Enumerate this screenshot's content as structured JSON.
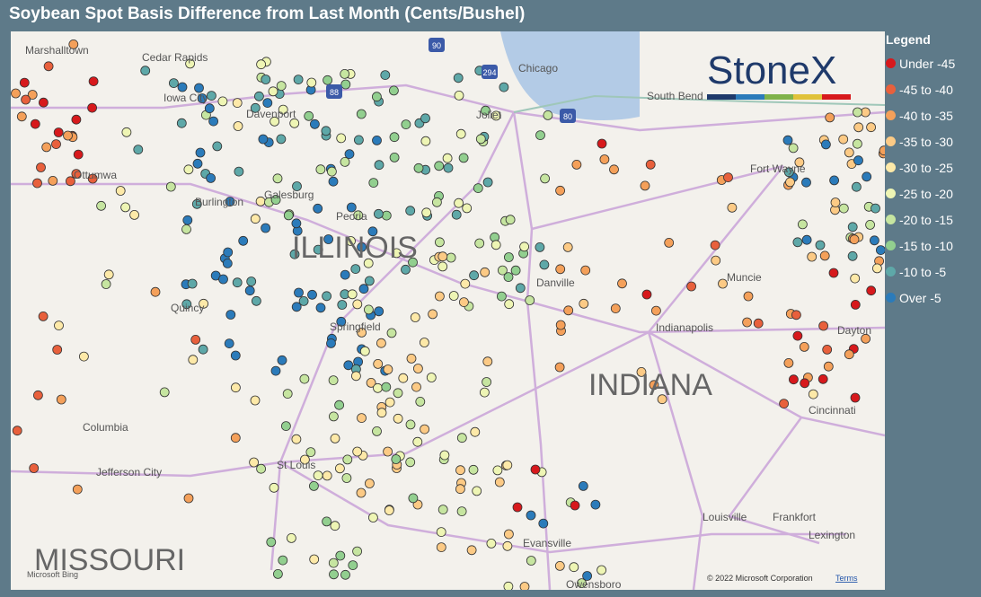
{
  "header": {
    "title": "Soybean Spot Basis Difference from Last Month (Cents/Bushel)"
  },
  "legend": {
    "title": "Legend",
    "items": [
      {
        "label": "Under -45",
        "color": "#d7191c"
      },
      {
        "label": "-45 to -40",
        "color": "#e8603c"
      },
      {
        "label": "-40 to -35",
        "color": "#f4a05a"
      },
      {
        "label": "-35 to -30",
        "color": "#fcca85"
      },
      {
        "label": "-30 to -25",
        "color": "#fde9a8"
      },
      {
        "label": "-25 to -20",
        "color": "#eef5b4"
      },
      {
        "label": "-20 to -15",
        "color": "#c6e5a0"
      },
      {
        "label": "-15 to -10",
        "color": "#92cf8f"
      },
      {
        "label": "-10 to -5",
        "color": "#5ea8a8"
      },
      {
        "label": "Over -5",
        "color": "#2b7bba"
      }
    ]
  },
  "map": {
    "places": [
      "Chicago",
      "South Bend",
      "Joliet",
      "Davenport",
      "Peoria",
      "Galesburg",
      "Springfield",
      "Quincy",
      "Burlington",
      "Ottumwa",
      "Cedar Rapids",
      "Iowa City",
      "Danville",
      "Muncie",
      "Fort Wayne",
      "Indianapolis",
      "Dayton",
      "Cincinnati",
      "Louisville",
      "Frankfort",
      "Lexington",
      "Evansville",
      "Owensboro",
      "St Louis",
      "Columbia",
      "Jefferson City",
      "Marshalltown"
    ],
    "regions": [
      "ILLINOIS",
      "INDIANA",
      "MISSOURI"
    ],
    "shields": [
      "90",
      "294",
      "88",
      "80"
    ],
    "logo": "StoneX",
    "copyright": "© 2022 Microsoft Corporation",
    "terms": "Terms",
    "provider": "Microsoft Bing"
  }
}
